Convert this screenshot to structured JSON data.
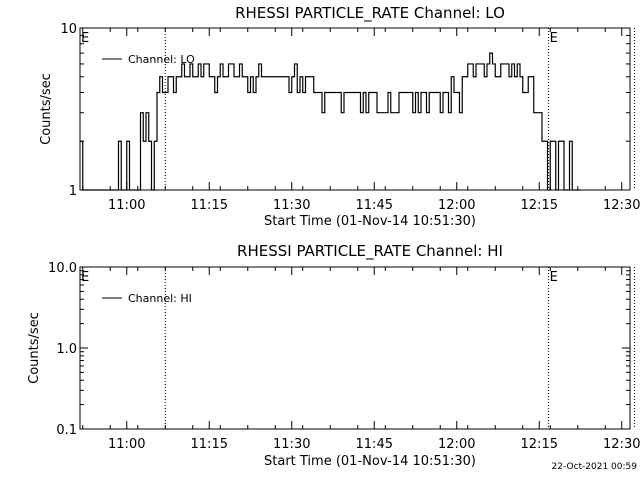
{
  "footer": {
    "timestamp": "22-Oct-2021 00:59"
  },
  "chart_data": [
    {
      "type": "line",
      "title": "RHESSI PARTICLE_RATE Channel: LO",
      "xlabel": "Start Time (01-Nov-14 10:51:30)",
      "ylabel": "Counts/sec",
      "yscale": "log",
      "ylim": [
        1,
        10
      ],
      "xlim_minutes": [
        0,
        100
      ],
      "x_ticks": [
        {
          "label": "11:00",
          "minute": 8.5
        },
        {
          "label": "11:15",
          "minute": 23.5
        },
        {
          "label": "11:30",
          "minute": 38.5
        },
        {
          "label": "11:45",
          "minute": 53.5
        },
        {
          "label": "12:00",
          "minute": 68.5
        },
        {
          "label": "12:15",
          "minute": 83.5
        },
        {
          "label": "12:30",
          "minute": 98.5
        }
      ],
      "y_ticks": [
        {
          "label": "1",
          "value": 1
        },
        {
          "label": "10",
          "value": 10
        }
      ],
      "legend": {
        "entries": [
          "Channel: LO"
        ],
        "position": "top-left"
      },
      "markers": [
        {
          "label": "E",
          "minute": 0
        },
        {
          "label": "E",
          "minute": 85.2
        }
      ],
      "vlines_minutes": [
        15.5,
        85.2,
        100.8
      ],
      "series": [
        {
          "name": "Channel: LO",
          "minute_step": 0.5,
          "start_minute": 0,
          "values": [
            2,
            1,
            1,
            1,
            1,
            1,
            1,
            1,
            1,
            1,
            1,
            1,
            1,
            1,
            2,
            1,
            1,
            2,
            1,
            1,
            1,
            1,
            3,
            2,
            3,
            2,
            1,
            2,
            4,
            5,
            4,
            4,
            5,
            5,
            4,
            5,
            5,
            6,
            5,
            5,
            6,
            5,
            5,
            6,
            5,
            6,
            6,
            5,
            5,
            4,
            5,
            6,
            5,
            5,
            6,
            6,
            5,
            5,
            6,
            5,
            5,
            4,
            5,
            4,
            5,
            6,
            5,
            5,
            5,
            5,
            5,
            5,
            5,
            5,
            5,
            5,
            4,
            5,
            6,
            4,
            5,
            4,
            5,
            5,
            5,
            4,
            4,
            4,
            3,
            4,
            4,
            4,
            4,
            4,
            4,
            3,
            4,
            4,
            4,
            4,
            4,
            4,
            3,
            4,
            3,
            4,
            4,
            4,
            3,
            3,
            3,
            3,
            4,
            3,
            3,
            3,
            4,
            4,
            4,
            4,
            4,
            3,
            4,
            3,
            4,
            4,
            3,
            4,
            4,
            4,
            4,
            3,
            4,
            4,
            3,
            5,
            4,
            4,
            3,
            5,
            5,
            6,
            6,
            5,
            6,
            6,
            6,
            5,
            6,
            7,
            6,
            5,
            5,
            6,
            6,
            6,
            5,
            6,
            5,
            6,
            5,
            4,
            4,
            5,
            5,
            3,
            3,
            3,
            2,
            2,
            1,
            2,
            2,
            1,
            2,
            2,
            1,
            1,
            2,
            1,
            1,
            1
          ]
        }
      ]
    },
    {
      "type": "line",
      "title": "RHESSI PARTICLE_RATE Channel: HI",
      "xlabel": "Start Time (01-Nov-14 10:51:30)",
      "ylabel": "Counts/sec",
      "yscale": "log",
      "ylim": [
        0.1,
        10
      ],
      "xlim_minutes": [
        0,
        100
      ],
      "x_ticks": [
        {
          "label": "11:00",
          "minute": 8.5
        },
        {
          "label": "11:15",
          "minute": 23.5
        },
        {
          "label": "11:30",
          "minute": 38.5
        },
        {
          "label": "11:45",
          "minute": 53.5
        },
        {
          "label": "12:00",
          "minute": 68.5
        },
        {
          "label": "12:15",
          "minute": 83.5
        },
        {
          "label": "12:30",
          "minute": 98.5
        }
      ],
      "y_ticks": [
        {
          "label": "0.1",
          "value": 0.1
        },
        {
          "label": "1.0",
          "value": 1
        },
        {
          "label": "10.0",
          "value": 10
        }
      ],
      "legend": {
        "entries": [
          "Channel: HI"
        ],
        "position": "top-left"
      },
      "markers": [
        {
          "label": "E",
          "minute": 0
        },
        {
          "label": "E",
          "minute": 85.2
        }
      ],
      "vlines_minutes": [
        15.5,
        85.2,
        100.8
      ],
      "series": [
        {
          "name": "Channel: HI",
          "minute_step": 0.5,
          "start_minute": 0,
          "values": []
        }
      ]
    }
  ]
}
